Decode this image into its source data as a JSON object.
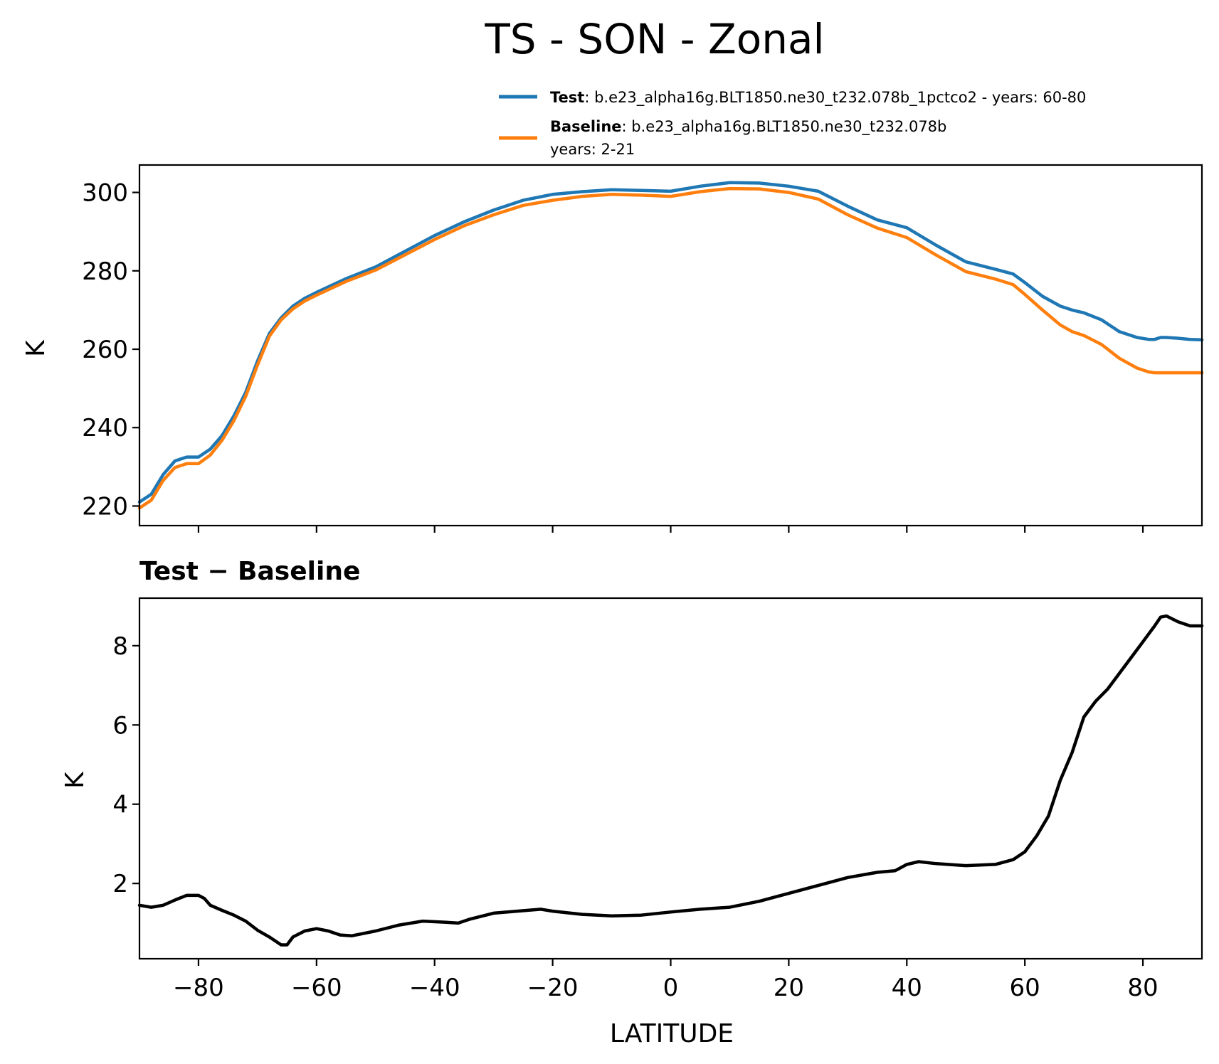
{
  "figure": {
    "title": "TS - SON - Zonal"
  },
  "legend": {
    "test_label": "Test",
    "test_text": ": b.e23_alpha16g.BLT1850.ne30_t232.078b_1pctco2 - years: 60-80",
    "baseline_label": "Baseline",
    "baseline_text": ": b.e23_alpha16g.BLT1850.ne30_t232.078b",
    "baseline_years": "years: 2-21"
  },
  "chart_data": [
    {
      "type": "line",
      "title": "",
      "xlabel": "",
      "ylabel": "K",
      "xlim": [
        -90,
        90
      ],
      "ylim": [
        215,
        307
      ],
      "yticks": [
        220,
        240,
        260,
        280,
        300
      ],
      "xticks": [
        -80,
        -60,
        -40,
        -20,
        0,
        20,
        40,
        60,
        80
      ],
      "show_xtick_labels": false,
      "grid": false,
      "legend": "top-right, above plot",
      "series": [
        {
          "name": "Test",
          "color": "#1f77b4",
          "x": [
            -90,
            -88,
            -86,
            -84,
            -82,
            -80,
            -78,
            -76,
            -74,
            -72,
            -70,
            -68,
            -66,
            -64,
            -62,
            -60,
            -55,
            -50,
            -45,
            -40,
            -35,
            -30,
            -25,
            -20,
            -15,
            -10,
            -5,
            0,
            5,
            10,
            15,
            20,
            25,
            30,
            35,
            40,
            45,
            50,
            55,
            58,
            60,
            63,
            66,
            68,
            70,
            73,
            76,
            79,
            81,
            82,
            83,
            84,
            86,
            88,
            90
          ],
          "values": [
            221,
            223,
            228,
            231.5,
            232.5,
            232.5,
            234.5,
            238,
            243,
            249,
            257,
            264,
            268,
            271,
            273,
            274.5,
            278,
            281,
            285,
            289,
            292.5,
            295.5,
            298,
            299.5,
            300.2,
            300.7,
            300.5,
            300.3,
            301.6,
            302.5,
            302.4,
            301.6,
            300.3,
            296.5,
            293,
            291,
            286.5,
            282.3,
            280.4,
            279.2,
            277,
            273.5,
            271,
            270,
            269.3,
            267.5,
            264.5,
            263,
            262.5,
            262.5,
            263,
            263,
            262.8,
            262.5,
            262.4
          ]
        },
        {
          "name": "Baseline",
          "color": "#ff7f0e",
          "x": [
            -90,
            -88,
            -86,
            -84,
            -82,
            -80,
            -78,
            -76,
            -74,
            -72,
            -70,
            -68,
            -66,
            -64,
            -62,
            -60,
            -55,
            -50,
            -45,
            -40,
            -35,
            -30,
            -25,
            -20,
            -15,
            -10,
            -5,
            0,
            5,
            10,
            15,
            20,
            25,
            30,
            35,
            40,
            45,
            50,
            55,
            58,
            60,
            63,
            66,
            68,
            70,
            73,
            76,
            79,
            81,
            82,
            83,
            84,
            86,
            88,
            90
          ],
          "values": [
            219.5,
            221.5,
            226.5,
            229.8,
            230.8,
            230.8,
            233,
            236.8,
            241.8,
            248,
            256,
            263.3,
            267.5,
            270.3,
            272.3,
            273.8,
            277.3,
            280.2,
            284.1,
            288,
            291.5,
            294.3,
            296.7,
            298,
            299,
            299.5,
            299.3,
            299,
            300.2,
            301,
            300.9,
            300,
            298.3,
            294.3,
            290.9,
            288.5,
            284,
            279.8,
            277.9,
            276.5,
            274,
            270,
            266.2,
            264.5,
            263.5,
            261.2,
            257.7,
            255.2,
            254.2,
            254,
            254,
            254,
            254,
            254,
            254
          ]
        }
      ]
    },
    {
      "type": "line",
      "title": "Test − Baseline",
      "xlabel": "LATITUDE",
      "ylabel": "K",
      "xlim": [
        -90,
        90
      ],
      "ylim": [
        0.1,
        9.2
      ],
      "yticks": [
        2,
        4,
        6,
        8
      ],
      "xticks": [
        -80,
        -60,
        -40,
        -20,
        0,
        20,
        40,
        60,
        80
      ],
      "xtick_labels": [
        "−80",
        "−60",
        "−40",
        "−20",
        "0",
        "20",
        "40",
        "60",
        "80"
      ],
      "grid": false,
      "series": [
        {
          "color": "#000000",
          "x": [
            -90,
            -88,
            -86,
            -84,
            -82,
            -80,
            -79,
            -78,
            -76,
            -74,
            -72,
            -70,
            -68,
            -66,
            -65,
            -64,
            -62,
            -60,
            -58,
            -56,
            -54,
            -50,
            -46,
            -42,
            -38,
            -36,
            -34,
            -30,
            -26,
            -22,
            -20,
            -15,
            -10,
            -5,
            0,
            5,
            10,
            15,
            20,
            25,
            30,
            35,
            38,
            40,
            42,
            45,
            50,
            55,
            58,
            60,
            62,
            64,
            66,
            68,
            70,
            72,
            74,
            76,
            78,
            80,
            82,
            83,
            84,
            86,
            88,
            90
          ],
          "values": [
            1.45,
            1.4,
            1.45,
            1.58,
            1.7,
            1.7,
            1.62,
            1.45,
            1.32,
            1.2,
            1.05,
            0.82,
            0.65,
            0.45,
            0.45,
            0.65,
            0.8,
            0.86,
            0.8,
            0.7,
            0.68,
            0.8,
            0.95,
            1.05,
            1.02,
            1.0,
            1.1,
            1.25,
            1.3,
            1.35,
            1.3,
            1.22,
            1.18,
            1.2,
            1.28,
            1.35,
            1.4,
            1.55,
            1.75,
            1.95,
            2.15,
            2.28,
            2.32,
            2.48,
            2.55,
            2.5,
            2.45,
            2.48,
            2.6,
            2.8,
            3.2,
            3.7,
            4.6,
            5.3,
            6.2,
            6.6,
            6.9,
            7.3,
            7.7,
            8.1,
            8.5,
            8.72,
            8.75,
            8.6,
            8.5,
            8.5
          ]
        }
      ]
    }
  ]
}
